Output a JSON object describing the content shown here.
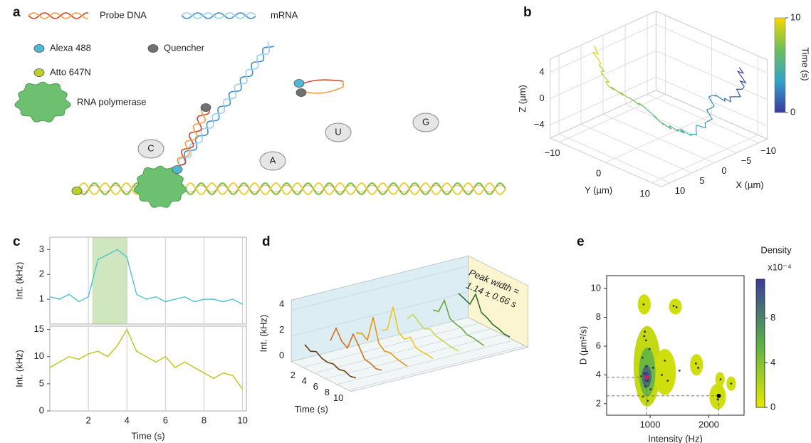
{
  "panel_labels": [
    "a",
    "b",
    "c",
    "d",
    "e"
  ],
  "diagram": {
    "legend": {
      "probe": "Probe DNA",
      "mrna": "mRNA",
      "alexa": "Alexa 488",
      "quencher": "Quencher",
      "atto": "Atto 647N",
      "polymerase": "RNA polymerase"
    },
    "nucleotides": [
      "C",
      "A",
      "U",
      "G"
    ]
  },
  "chart_data": [
    {
      "type": "line3d",
      "xlabel": "X (µm)",
      "ylabel": "Y (µm)",
      "zlabel": "Z (µm)",
      "x": [
        -12,
        -11,
        -9,
        -7,
        -5,
        -3,
        -1,
        1,
        2,
        3,
        4,
        3,
        2
      ],
      "y": [
        6,
        8,
        7,
        5,
        6,
        4,
        3,
        2,
        -1,
        -4,
        -7,
        -10,
        -12
      ],
      "z": [
        3,
        1,
        -1,
        0,
        -3,
        -5,
        -4,
        -3,
        -1,
        0,
        1,
        3,
        5
      ],
      "t": [
        0,
        0.8,
        1.6,
        2.4,
        3.2,
        4.0,
        4.8,
        5.6,
        6.4,
        7.2,
        8.0,
        9.0,
        10
      ],
      "xlim": [
        -12,
        12
      ],
      "ylim": [
        -12,
        12
      ],
      "zlim": [
        -6,
        6
      ],
      "xticks": [
        {
          "value": -10,
          "label": "−10"
        },
        {
          "value": -5,
          "label": "−5"
        },
        0,
        5,
        10
      ],
      "yticks": [
        {
          "value": -10,
          "label": "−10"
        },
        0,
        10
      ],
      "zticks": [
        {
          "value": -4,
          "label": "−4"
        },
        0,
        4
      ],
      "colorbar": {
        "label": "Time (s)",
        "lim": [
          0,
          10
        ],
        "ticks": [
          0,
          10
        ],
        "colors": [
          "#3a3a9e",
          "#35a2c8",
          "#6cbf5a",
          "#f5d800"
        ]
      },
      "grid": true
    },
    {
      "type": "line",
      "ylabel": "Int. (kHz)",
      "x": [
        0,
        0.5,
        1,
        1.5,
        2,
        2.5,
        3,
        3.5,
        4,
        4.5,
        5,
        5.5,
        6,
        6.5,
        7,
        7.5,
        8,
        8.5,
        9,
        9.5,
        10
      ],
      "series": [
        {
          "color": "#4fc1d3",
          "values": [
            1.1,
            1.0,
            1.2,
            0.9,
            1.1,
            2.6,
            2.8,
            3.0,
            2.7,
            1.2,
            1.0,
            1.1,
            0.9,
            1.0,
            1.1,
            0.9,
            1.0,
            1.0,
            0.9,
            1.0,
            0.8
          ]
        }
      ],
      "xlim": [
        0,
        10.2
      ],
      "ylim": [
        0,
        3.5
      ],
      "xticks": [
        2,
        4,
        6,
        8,
        10
      ],
      "yticks": [
        1,
        2,
        3
      ],
      "highlight": [
        2.2,
        4.0
      ],
      "grid": true
    },
    {
      "type": "line",
      "ylabel": "Int. (kHz)",
      "xlabel": "Time (s)",
      "x": [
        0,
        0.5,
        1,
        1.5,
        2,
        2.5,
        3,
        3.5,
        4,
        4.5,
        5,
        5.5,
        6,
        6.5,
        7,
        7.5,
        8,
        8.5,
        9,
        9.5,
        10
      ],
      "series": [
        {
          "color": "#b4c814",
          "values": [
            8,
            9,
            10,
            9.5,
            10.5,
            11,
            10,
            12,
            15,
            11,
            10,
            9,
            10,
            8,
            9,
            8,
            7,
            6,
            7,
            6.5,
            4
          ]
        }
      ],
      "xlim": [
        0,
        10.2
      ],
      "ylim": [
        0,
        15.6
      ],
      "xticks": [
        2,
        4,
        6,
        8,
        10
      ],
      "yticks": [
        0,
        5,
        10,
        15
      ],
      "grid": true
    },
    {
      "type": "waterfall",
      "ylabel": "Int. (kHz)",
      "xlabel": "Time (s)",
      "annotation": [
        "Peak width =",
        "1.14 ± 0.66 s"
      ],
      "x": [
        1,
        2,
        3,
        4,
        5,
        6,
        7,
        8,
        9,
        10
      ],
      "series": [
        {
          "color": "#6b3e12",
          "values": [
            1.4,
            1.1,
            1.3,
            1.0,
            0.9,
            1.0,
            0.8,
            0.9,
            0.7,
            0.8
          ]
        },
        {
          "color": "#d2701a",
          "values": [
            1.2,
            2.4,
            1.6,
            1.3,
            2.6,
            1.9,
            1.1,
            1.0,
            0.8,
            0.9
          ]
        },
        {
          "color": "#e8960c",
          "values": [
            1.3,
            1.5,
            1.2,
            3.2,
            1.4,
            1.0,
            1.1,
            0.9,
            0.8,
            0.7
          ]
        },
        {
          "color": "#f0c428",
          "values": [
            1.0,
            1.3,
            3.3,
            1.5,
            1.2,
            1.6,
            1.0,
            0.9,
            0.9,
            0.8
          ]
        },
        {
          "color": "#c6d850",
          "values": [
            1.4,
            2.0,
            1.6,
            1.3,
            1.5,
            1.2,
            1.1,
            1.0,
            0.9,
            0.9
          ]
        },
        {
          "color": "#6aa840",
          "values": [
            1.6,
            1.7,
            2.8,
            1.6,
            1.4,
            1.3,
            1.0,
            1.0,
            0.9,
            0.8
          ]
        },
        {
          "color": "#2e6e30",
          "values": [
            2.4,
            2.2,
            2.0,
            3.0,
            1.8,
            1.6,
            1.3,
            1.2,
            1.0,
            1.0
          ]
        }
      ],
      "xlim": [
        0,
        10.5
      ],
      "ylim": [
        0,
        4.8
      ],
      "xticks": [
        2,
        4,
        6,
        8,
        10
      ],
      "yticks": [
        0,
        2,
        4
      ]
    },
    {
      "type": "density",
      "xlabel": "Intensity (Hz)",
      "ylabel": "D (µm²/s)",
      "x": [
        880,
        920,
        960,
        900,
        940,
        870,
        990,
        930,
        910,
        1010,
        850,
        960,
        1050,
        890,
        1200,
        1300,
        1250,
        1400,
        1450,
        1500,
        1780,
        1820,
        2150,
        2200,
        2380,
        900
      ],
      "y": [
        2.5,
        3.2,
        3.6,
        4.1,
        4.6,
        5.2,
        5.8,
        6.4,
        7.0,
        3.0,
        3.9,
        2.2,
        4.5,
        8.9,
        4.0,
        3.6,
        5.0,
        8.8,
        8.7,
        4.3,
        4.8,
        4.5,
        2.3,
        3.7,
        3.4,
        6.7
      ],
      "blobs": [
        {
          "x": 950,
          "y": 4.6,
          "rx": 230,
          "ry": 2.8,
          "value": 1.5
        },
        {
          "x": 1250,
          "y": 4.2,
          "rx": 190,
          "ry": 1.6,
          "value": 1
        },
        {
          "x": 900,
          "y": 8.9,
          "rx": 110,
          "ry": 0.7,
          "value": 1
        },
        {
          "x": 1430,
          "y": 8.75,
          "rx": 110,
          "ry": 0.55,
          "value": 1
        },
        {
          "x": 1790,
          "y": 4.7,
          "rx": 110,
          "ry": 0.75,
          "value": 1
        },
        {
          "x": 2150,
          "y": 2.5,
          "rx": 140,
          "ry": 0.9,
          "value": 1
        },
        {
          "x": 2190,
          "y": 3.7,
          "rx": 80,
          "ry": 0.5,
          "value": 1
        },
        {
          "x": 2380,
          "y": 3.4,
          "rx": 80,
          "ry": 0.5,
          "value": 1
        },
        {
          "x": 950,
          "y": 4.2,
          "rx": 140,
          "ry": 1.7,
          "value": 5
        },
        {
          "x": 940,
          "y": 3.9,
          "rx": 80,
          "ry": 0.8,
          "value": 9
        },
        {
          "x": 940,
          "y": 3.85,
          "rx": 40,
          "ry": 0.4,
          "value": 11
        }
      ],
      "markers": [
        {
          "x": 940,
          "y": 3.85,
          "color": "#e0204a"
        },
        {
          "x": 2170,
          "y": 2.55,
          "color": "#000000"
        }
      ],
      "xlim": [
        260,
        2600
      ],
      "ylim": [
        1.2,
        10.9
      ],
      "xticks": [
        1000,
        2000
      ],
      "yticks": [
        2,
        4,
        6,
        8,
        10
      ],
      "colorbar": {
        "label": "Density",
        "unit": "x10⁻⁴",
        "lim": [
          0,
          11.5
        ],
        "ticks": [
          0,
          4,
          8
        ],
        "colors": [
          "#e8e800",
          "#58b048",
          "#3a3c98"
        ]
      }
    }
  ]
}
